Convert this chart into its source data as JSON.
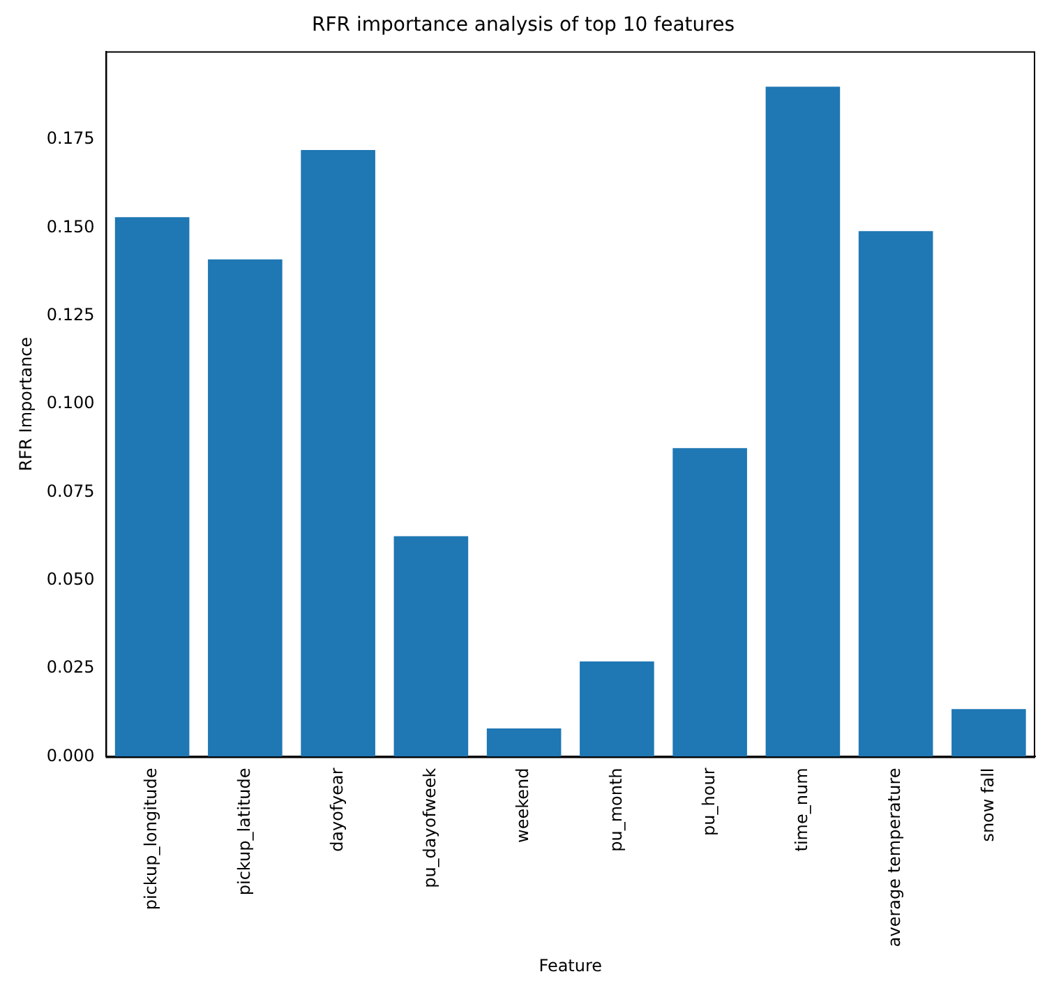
{
  "chart_data": {
    "type": "bar",
    "title": "RFR importance analysis of top 10 features",
    "xlabel": "Feature",
    "ylabel": "RFR Importance",
    "categories": [
      "pickup_longitude",
      "pickup_latitude",
      "dayofyear",
      "pu_dayofweek",
      "weekend",
      "pu_month",
      "pu_hour",
      "time_num",
      "average temperature",
      "snow fall"
    ],
    "values": [
      0.153,
      0.141,
      0.172,
      0.0625,
      0.008,
      0.027,
      0.0875,
      0.19,
      0.149,
      0.0135
    ],
    "color": "#1f77b4",
    "ylim": [
      0,
      0.2
    ],
    "yticks": [
      {
        "value": 0,
        "label": "0.000"
      },
      {
        "value": 0.025,
        "label": "0.025"
      },
      {
        "value": 0.05,
        "label": "0.050"
      },
      {
        "value": 0.075,
        "label": "0.075"
      },
      {
        "value": 0.1,
        "label": "0.100"
      },
      {
        "value": 0.125,
        "label": "0.125"
      },
      {
        "value": 0.15,
        "label": "0.150"
      },
      {
        "value": 0.175,
        "label": "0.175"
      }
    ],
    "grid": false,
    "legend": false
  }
}
